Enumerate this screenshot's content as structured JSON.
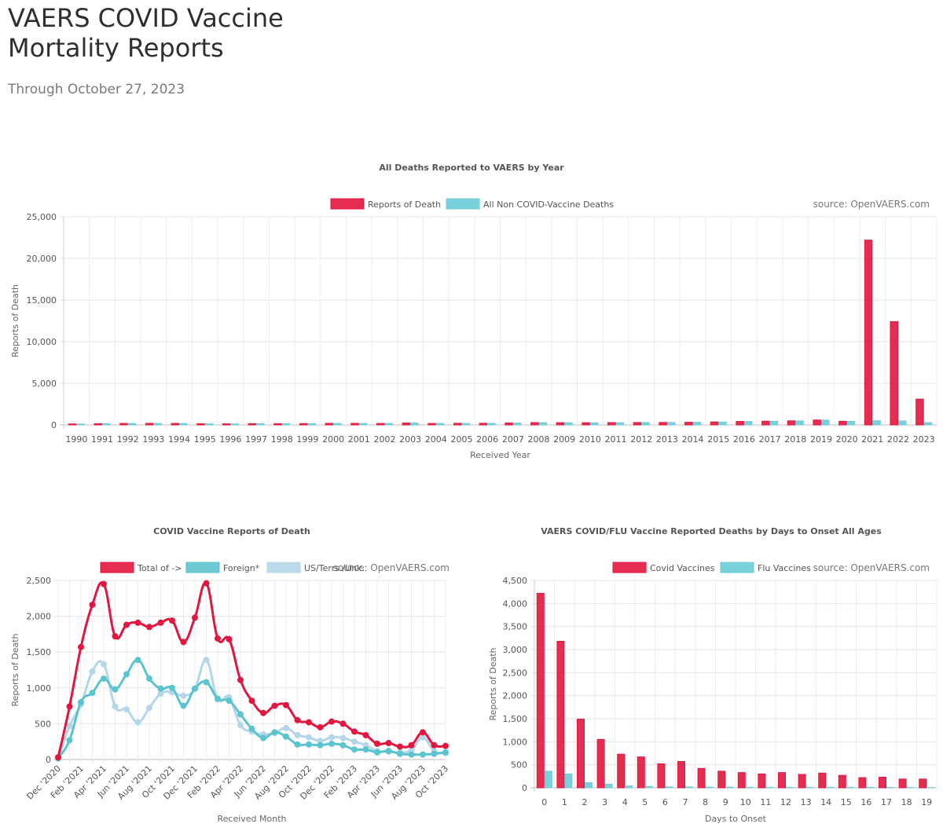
{
  "page": {
    "title": "VAERS COVID Vaccine\nMortality Reports",
    "subtitle": "Through October 27, 2023"
  },
  "chart_data": [
    {
      "id": "year",
      "type": "bar",
      "title": "All Deaths Reported to VAERS by Year",
      "xlabel": "Received Year",
      "ylabel": "Reports of Death",
      "ylim": [
        0,
        25000
      ],
      "yticks": [
        0,
        5000,
        10000,
        15000,
        20000,
        25000
      ],
      "source": "source: OpenVAERS.com",
      "grid": true,
      "legend_position": "top",
      "categories": [
        "1990",
        "1991",
        "1992",
        "1993",
        "1994",
        "1995",
        "1996",
        "1997",
        "1998",
        "1999",
        "2000",
        "2001",
        "2002",
        "2003",
        "2004",
        "2005",
        "2006",
        "2007",
        "2008",
        "2009",
        "2010",
        "2011",
        "2012",
        "2013",
        "2014",
        "2015",
        "2016",
        "2017",
        "2018",
        "2019",
        "2020",
        "2021",
        "2022",
        "2023"
      ],
      "series": [
        {
          "name": "Reports of Death",
          "color": "#e2163f",
          "values": [
            120,
            150,
            180,
            190,
            180,
            140,
            130,
            150,
            150,
            160,
            190,
            190,
            180,
            230,
            180,
            190,
            200,
            230,
            280,
            270,
            260,
            280,
            290,
            300,
            320,
            360,
            420,
            450,
            490,
            590,
            440,
            22200,
            12400,
            3100
          ]
        },
        {
          "name": "All Non COVID-Vaccine Deaths",
          "color": "#6ccbd8",
          "values": [
            110,
            140,
            170,
            180,
            170,
            130,
            120,
            140,
            140,
            150,
            180,
            180,
            170,
            220,
            170,
            180,
            190,
            220,
            270,
            260,
            250,
            270,
            280,
            290,
            310,
            350,
            410,
            440,
            480,
            580,
            430,
            500,
            480,
            280
          ]
        }
      ]
    },
    {
      "id": "monthly",
      "type": "line",
      "title": "COVID Vaccine Reports of Death",
      "xlabel": "Received Month",
      "ylabel": "Reports of Death",
      "ylim": [
        0,
        2500
      ],
      "yticks": [
        0,
        500,
        1000,
        1500,
        2000,
        2500
      ],
      "source": "source: OpenVAERS.com",
      "grid": true,
      "legend_position": "top",
      "categories": [
        "Dec '2020",
        "Jan '2021",
        "Feb '2021",
        "Mar '2021",
        "Apr '2021",
        "May '2021",
        "Jun '2021",
        "Jul '2021",
        "Aug '2021",
        "Sep '2021",
        "Oct '2021",
        "Nov '2021",
        "Dec '2021",
        "Jan '2022",
        "Feb '2022",
        "Mar '2022",
        "Apr '2022",
        "May '2022",
        "Jun '2022",
        "Jul '2022",
        "Aug '2022",
        "Sep '2022",
        "Oct '2022",
        "Nov '2022",
        "Dec '2022",
        "Jan '2023",
        "Feb '2023",
        "Mar '2023",
        "Apr '2023",
        "May '2023",
        "Jun '2023",
        "Jul '2023",
        "Aug '2023",
        "Sep '2023",
        "Oct '2023"
      ],
      "tick_labels": [
        "Dec '2020",
        "Feb '2021",
        "Apr '2021",
        "Jun '2021",
        "Aug '2021",
        "Oct '2021",
        "Dec '2021",
        "Feb '2022",
        "Apr '2022",
        "Jun '2022",
        "Aug '2022",
        "Oct '2022",
        "Dec '2022",
        "Feb '2023",
        "Apr '2023",
        "Jun '2023",
        "Aug '2023",
        "Oct '2023"
      ],
      "series": [
        {
          "name": "Total of ->",
          "color": "#e2163f",
          "values": [
            30,
            740,
            1570,
            2160,
            2450,
            1720,
            1880,
            1910,
            1850,
            1910,
            1940,
            1640,
            1980,
            2460,
            1690,
            1680,
            1110,
            820,
            650,
            750,
            760,
            550,
            520,
            450,
            530,
            500,
            390,
            340,
            220,
            230,
            180,
            200,
            380,
            200,
            190
          ]
        },
        {
          "name": "Foreign*",
          "color": "#5bc4cf",
          "values": [
            20,
            270,
            800,
            930,
            1130,
            980,
            1190,
            1390,
            1130,
            990,
            1000,
            750,
            990,
            1080,
            850,
            820,
            630,
            430,
            300,
            380,
            320,
            210,
            210,
            200,
            220,
            200,
            140,
            140,
            100,
            120,
            80,
            70,
            70,
            80,
            100
          ]
        },
        {
          "name": "US/Terrs./Unk.",
          "color": "#b3d6e8",
          "values": [
            10,
            470,
            770,
            1230,
            1330,
            740,
            700,
            520,
            720,
            920,
            940,
            890,
            990,
            1390,
            840,
            870,
            480,
            390,
            350,
            370,
            440,
            340,
            310,
            260,
            310,
            300,
            250,
            200,
            120,
            110,
            100,
            130,
            310,
            120,
            90
          ]
        }
      ]
    },
    {
      "id": "onset",
      "type": "bar",
      "title": "VAERS COVID/FLU Vaccine Reported Deaths by Days to Onset All Ages",
      "xlabel": "Days to Onset",
      "ylabel": "Reports of Death",
      "ylim": [
        0,
        4500
      ],
      "yticks": [
        0,
        500,
        1000,
        1500,
        2000,
        2500,
        3000,
        3500,
        4000,
        4500
      ],
      "source": "source: OpenVAERS.com",
      "grid": true,
      "legend_position": "top",
      "categories": [
        "0",
        "1",
        "2",
        "3",
        "4",
        "5",
        "6",
        "7",
        "8",
        "9",
        "10",
        "11",
        "12",
        "13",
        "14",
        "15",
        "16",
        "17",
        "18",
        "19"
      ],
      "series": [
        {
          "name": "Covid Vaccines",
          "color": "#e2163f",
          "values": [
            4220,
            3180,
            1490,
            1050,
            730,
            670,
            520,
            570,
            420,
            360,
            330,
            300,
            330,
            290,
            320,
            270,
            220,
            230,
            190,
            190
          ]
        },
        {
          "name": "Flu Vaccines",
          "color": "#6ccbd8",
          "values": [
            360,
            300,
            110,
            80,
            40,
            30,
            20,
            20,
            15,
            15,
            10,
            10,
            10,
            10,
            10,
            10,
            8,
            8,
            6,
            6
          ]
        }
      ]
    }
  ]
}
